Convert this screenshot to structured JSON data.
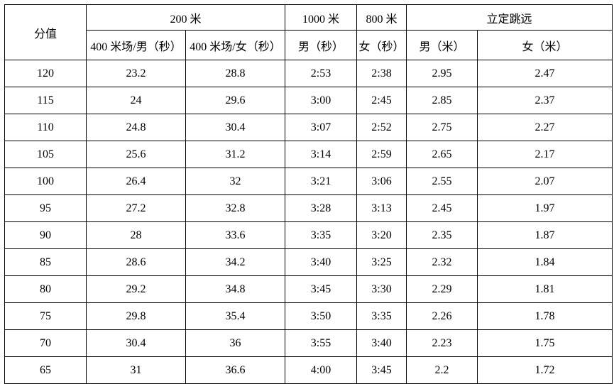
{
  "table": {
    "header": {
      "score_label": "分值",
      "groups": [
        {
          "label": "200 米"
        },
        {
          "label": "1000 米"
        },
        {
          "label": "800 米"
        },
        {
          "label": "立定跳远"
        }
      ],
      "subheaders": [
        "400 米场/男（秒）",
        "400 米场/女（秒）",
        "男（秒）",
        "女（秒）",
        "男（米）",
        "女（米）"
      ]
    },
    "rows": [
      {
        "score": "120",
        "values": [
          "23.2",
          "28.8",
          "2:53",
          "2:38",
          "2.95",
          "2.47"
        ]
      },
      {
        "score": "115",
        "values": [
          "24",
          "29.6",
          "3:00",
          "2:45",
          "2.85",
          "2.37"
        ]
      },
      {
        "score": "110",
        "values": [
          "24.8",
          "30.4",
          "3:07",
          "2:52",
          "2.75",
          "2.27"
        ]
      },
      {
        "score": "105",
        "values": [
          "25.6",
          "31.2",
          "3:14",
          "2:59",
          "2.65",
          "2.17"
        ]
      },
      {
        "score": "100",
        "values": [
          "26.4",
          "32",
          "3:21",
          "3:06",
          "2.55",
          "2.07"
        ]
      },
      {
        "score": "95",
        "values": [
          "27.2",
          "32.8",
          "3:28",
          "3:13",
          "2.45",
          "1.97"
        ]
      },
      {
        "score": "90",
        "values": [
          "28",
          "33.6",
          "3:35",
          "3:20",
          "2.35",
          "1.87"
        ]
      },
      {
        "score": "85",
        "values": [
          "28.6",
          "34.2",
          "3:40",
          "3:25",
          "2.32",
          "1.84"
        ]
      },
      {
        "score": "80",
        "values": [
          "29.2",
          "34.8",
          "3:45",
          "3:30",
          "2.29",
          "1.81"
        ]
      },
      {
        "score": "75",
        "values": [
          "29.8",
          "35.4",
          "3:50",
          "3:35",
          "2.26",
          "1.78"
        ]
      },
      {
        "score": "70",
        "values": [
          "30.4",
          "36",
          "3:55",
          "3:40",
          "2.23",
          "1.75"
        ]
      },
      {
        "score": "65",
        "values": [
          "31",
          "36.6",
          "4:00",
          "3:45",
          "2.2",
          "1.72"
        ]
      }
    ],
    "colors": {
      "border": "#000000",
      "text": "#000000",
      "background": "#ffffff"
    }
  }
}
